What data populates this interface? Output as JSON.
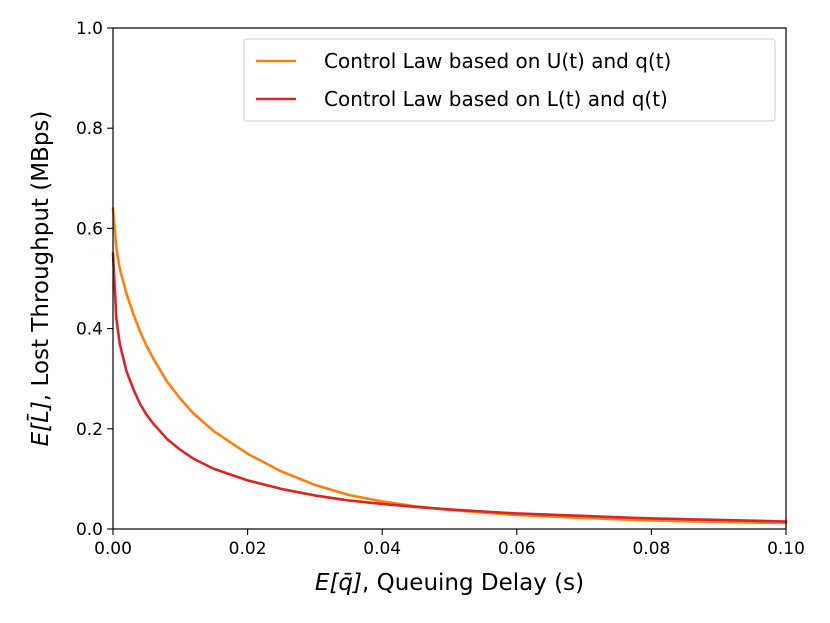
{
  "chart_data": {
    "type": "line",
    "xlabel_math": "E[q̄]",
    "xlabel_text": ", Queuing Delay (s)",
    "ylabel_math": "E[L̄]",
    "ylabel_text": ", Lost Throughput (MBps)",
    "xlim": [
      0.0,
      0.1
    ],
    "ylim": [
      0.0,
      1.0
    ],
    "xticks": [
      0.0,
      0.02,
      0.04,
      0.06,
      0.08,
      0.1
    ],
    "xtick_labels": [
      "0.00",
      "0.02",
      "0.04",
      "0.06",
      "0.08",
      "0.10"
    ],
    "yticks": [
      0.0,
      0.2,
      0.4,
      0.6,
      0.8,
      1.0
    ],
    "ytick_labels": [
      "0.0",
      "0.2",
      "0.4",
      "0.6",
      "0.8",
      "1.0"
    ],
    "grid": false,
    "legend_position": "top-right",
    "series": [
      {
        "name": "Control Law based on U(t) and q(t)",
        "color": "#ff7f0e",
        "x": [
          0.0,
          0.0005,
          0.001,
          0.002,
          0.003,
          0.004,
          0.005,
          0.006,
          0.008,
          0.01,
          0.012,
          0.015,
          0.02,
          0.025,
          0.03,
          0.035,
          0.04,
          0.045,
          0.05,
          0.06,
          0.07,
          0.08,
          0.09,
          0.1
        ],
        "y": [
          0.64,
          0.56,
          0.52,
          0.47,
          0.43,
          0.395,
          0.365,
          0.34,
          0.295,
          0.26,
          0.23,
          0.195,
          0.15,
          0.115,
          0.088,
          0.068,
          0.055,
          0.045,
          0.038,
          0.028,
          0.022,
          0.017,
          0.014,
          0.012
        ]
      },
      {
        "name": "Control Law based on L(t) and q(t)",
        "color": "#d62728",
        "x": [
          0.0,
          0.0005,
          0.001,
          0.002,
          0.003,
          0.004,
          0.005,
          0.006,
          0.008,
          0.01,
          0.012,
          0.015,
          0.02,
          0.025,
          0.03,
          0.035,
          0.04,
          0.045,
          0.05,
          0.06,
          0.07,
          0.08,
          0.09,
          0.1
        ],
        "y": [
          0.55,
          0.42,
          0.37,
          0.315,
          0.28,
          0.25,
          0.228,
          0.21,
          0.18,
          0.158,
          0.14,
          0.12,
          0.097,
          0.08,
          0.067,
          0.057,
          0.05,
          0.044,
          0.039,
          0.031,
          0.026,
          0.021,
          0.018,
          0.015
        ]
      }
    ]
  }
}
